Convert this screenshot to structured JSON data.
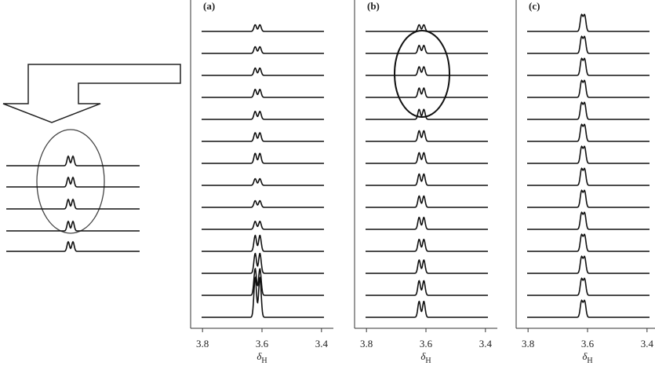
{
  "panels": [
    {
      "label": "(a)",
      "xlim": [
        3.84,
        3.36
      ],
      "xticks": [
        3.8,
        3.6,
        3.4
      ],
      "x_label": "δ",
      "x_label_sub": "H"
    },
    {
      "label": "(b)",
      "xlim": [
        3.84,
        3.36
      ],
      "xticks": [
        3.8,
        3.6,
        3.4
      ],
      "x_label": "δ",
      "x_label_sub": "H"
    },
    {
      "label": "(c)",
      "xlim": [
        3.84,
        3.36
      ],
      "xticks": [
        3.8,
        3.6,
        3.4
      ],
      "x_label": "δ",
      "x_label_sub": "H"
    }
  ]
}
